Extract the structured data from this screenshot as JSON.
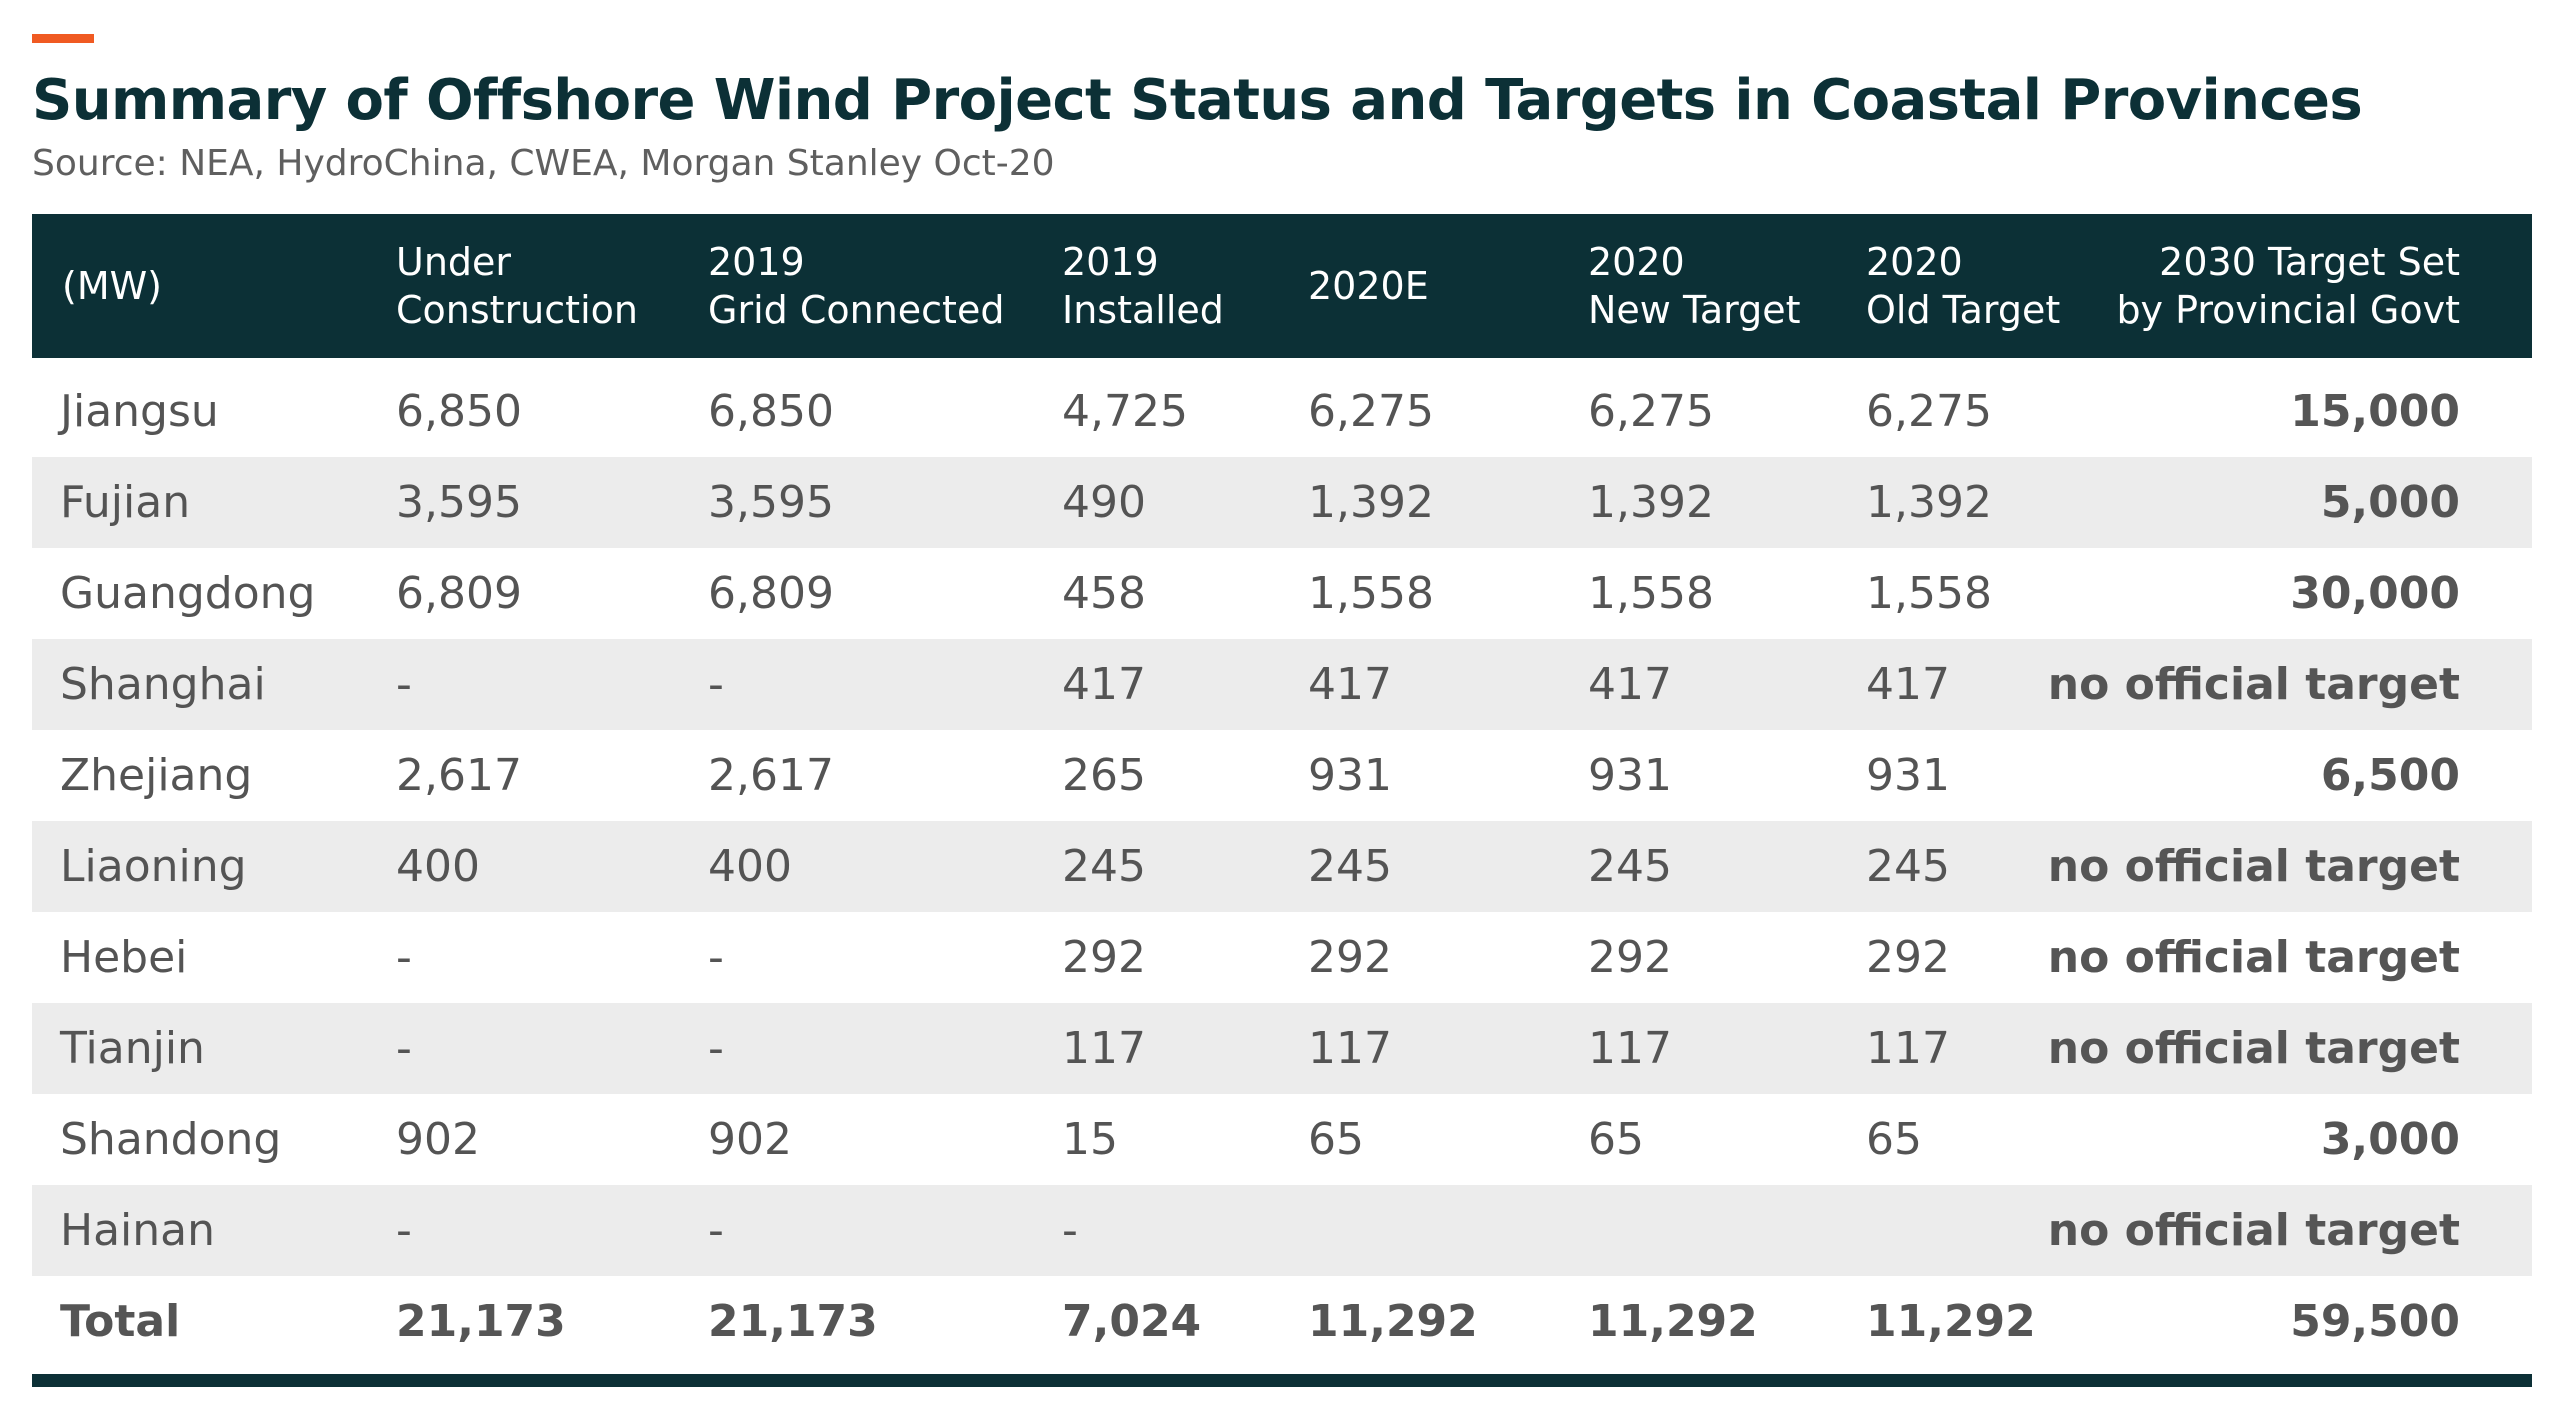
{
  "title": "Summary of Offshore Wind Project Status and Targets in Coastal Provinces",
  "source": "Source: NEA, HydroChina, CWEA, Morgan Stanley Oct-20",
  "colors": {
    "accent": "#f05a22",
    "header_bg": "#0c3036",
    "row_alt": "#ececec"
  },
  "headers": [
    {
      "l1": "(MW)",
      "l2": ""
    },
    {
      "l1": "Under",
      "l2": "Construction"
    },
    {
      "l1": "2019",
      "l2": "Grid Connected"
    },
    {
      "l1": "2019",
      "l2": "Installed"
    },
    {
      "l1": "2020E",
      "l2": ""
    },
    {
      "l1": "2020",
      "l2": "New Target"
    },
    {
      "l1": "2020",
      "l2": "Old Target"
    },
    {
      "l1": "2030 Target Set",
      "l2": "by Provincial Govt"
    }
  ],
  "rows": [
    [
      "Jiangsu",
      "6,850",
      "6,850",
      "4,725",
      "6,275",
      "6,275",
      "6,275",
      "15,000"
    ],
    [
      "Fujian",
      "3,595",
      "3,595",
      "490",
      "1,392",
      "1,392",
      "1,392",
      "5,000"
    ],
    [
      "Guangdong",
      "6,809",
      "6,809",
      "458",
      "1,558",
      "1,558",
      "1,558",
      "30,000"
    ],
    [
      "Shanghai",
      "-",
      "-",
      "417",
      "417",
      "417",
      "417",
      "no official target"
    ],
    [
      "Zhejiang",
      "2,617",
      "2,617",
      "265",
      "931",
      "931",
      "931",
      "6,500"
    ],
    [
      "Liaoning",
      "400",
      "400",
      "245",
      "245",
      "245",
      "245",
      "no official target"
    ],
    [
      "Hebei",
      "-",
      "-",
      "292",
      "292",
      "292",
      "292",
      "no official target"
    ],
    [
      "Tianjin",
      "-",
      "-",
      "117",
      "117",
      "117",
      "117",
      "no official target"
    ],
    [
      "Shandong",
      "902",
      "902",
      "15",
      "65",
      "65",
      "65",
      "3,000"
    ],
    [
      "Hainan",
      "-",
      "-",
      "-",
      "",
      "",
      "",
      "no official target"
    ]
  ],
  "total": [
    "Total",
    "21,173",
    "21,173",
    "7,024",
    "11,292",
    "11,292",
    "11,292",
    "59,500"
  ]
}
